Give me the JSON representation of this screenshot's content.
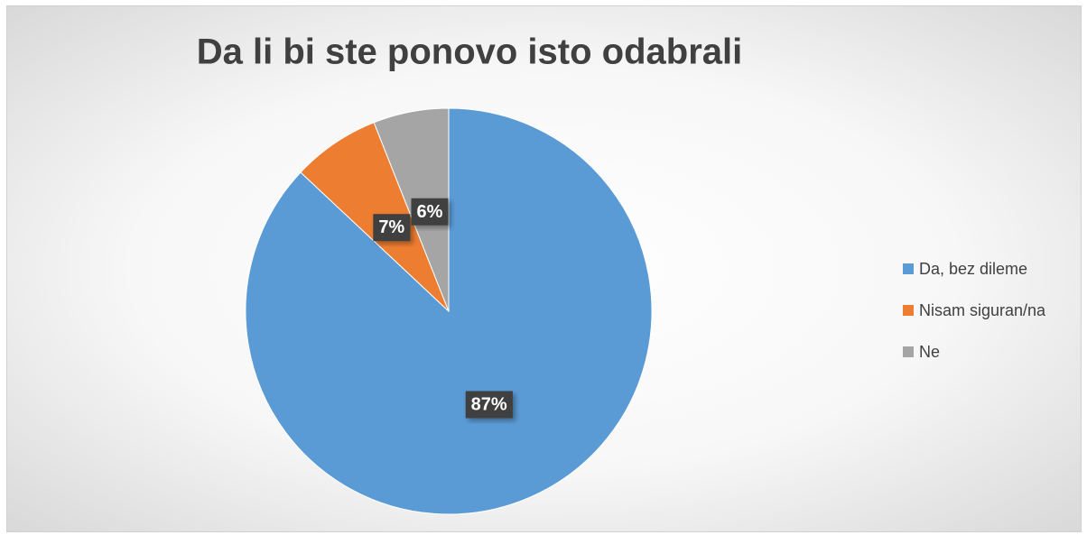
{
  "chart_data": {
    "type": "pie",
    "title": "Da li bi ste ponovo isto odabrali",
    "categories": [
      "Da, bez dileme",
      "Nisam siguran/na",
      "Ne"
    ],
    "values": [
      87,
      7,
      6
    ],
    "value_labels": [
      "87%",
      "7%",
      "6%"
    ],
    "colors": [
      "#5b9bd5",
      "#ed7d31",
      "#a5a5a5"
    ],
    "legend": "right"
  }
}
